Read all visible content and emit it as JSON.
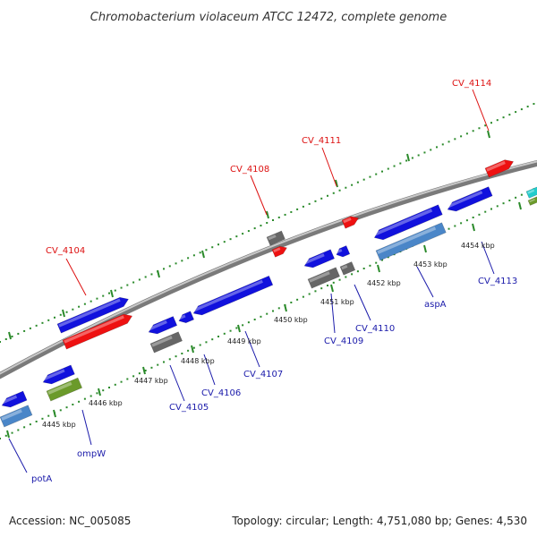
{
  "title": "Chromobacterium violaceum ATCC 12472, complete genome",
  "footer": {
    "accession": "Accession: NC_005085",
    "summary": "Topology: circular; Length: 4,751,080 bp; Genes: 4,530"
  },
  "colors": {
    "backbone": "#9a9a9a",
    "dots": "#2a8a2a",
    "plus_label": "#dd1111",
    "minus_label": "#1a1aaa",
    "cds": "#1111dd",
    "rna": "#ee1111",
    "pseudo": "#666666",
    "gene_light": "#4a86c8",
    "olive": "#6b9a2a",
    "cyan": "#22cccc"
  },
  "ticks": [
    {
      "label": "4445 kbp"
    },
    {
      "label": "4446 kbp"
    },
    {
      "label": "4447 kbp"
    },
    {
      "label": "4448 kbp"
    },
    {
      "label": "4449 kbp"
    },
    {
      "label": "4450 kbp"
    },
    {
      "label": "4451 kbp"
    },
    {
      "label": "4452 kbp"
    },
    {
      "label": "4453 kbp"
    },
    {
      "label": "4454 kbp"
    }
  ],
  "plus_labels": [
    {
      "text": "CV_4104"
    },
    {
      "text": "CV_4108"
    },
    {
      "text": "CV_4111"
    },
    {
      "text": "CV_4114"
    }
  ],
  "minus_labels": [
    {
      "text": "potA"
    },
    {
      "text": "ompW"
    },
    {
      "text": "CV_4105"
    },
    {
      "text": "CV_4106"
    },
    {
      "text": "CV_4107"
    },
    {
      "text": "CV_4109"
    },
    {
      "text": "CV_4110"
    },
    {
      "text": "aspA"
    },
    {
      "text": "CV_4113"
    }
  ]
}
